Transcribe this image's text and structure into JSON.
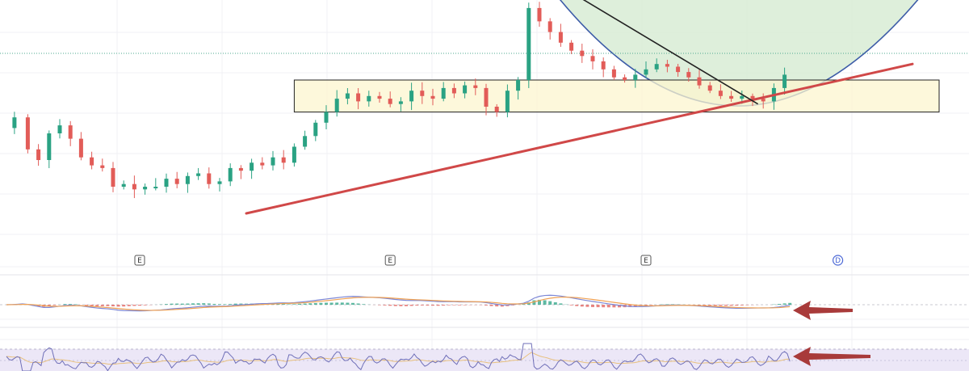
{
  "chart_data": {
    "type": "candlestick",
    "title": "",
    "xlabel": "",
    "ylabel": "",
    "ylim": [
      0,
      100
    ],
    "grid": true,
    "panes": [
      "price",
      "macd",
      "rsi"
    ],
    "ohlc_close_path": [
      [
        0,
        52
      ],
      [
        3,
        56
      ],
      [
        5,
        44
      ],
      [
        7,
        40
      ],
      [
        9,
        50
      ],
      [
        11,
        53
      ],
      [
        13,
        48
      ],
      [
        15,
        41
      ],
      [
        17,
        38
      ],
      [
        19,
        37
      ],
      [
        21,
        30
      ],
      [
        23,
        31
      ],
      [
        25,
        29
      ],
      [
        27,
        30
      ],
      [
        29,
        30
      ],
      [
        31,
        33
      ],
      [
        33,
        31
      ],
      [
        35,
        34
      ],
      [
        37,
        35
      ],
      [
        39,
        31
      ],
      [
        41,
        32
      ],
      [
        43,
        37
      ],
      [
        45,
        36
      ],
      [
        47,
        39
      ],
      [
        49,
        38
      ],
      [
        51,
        41
      ],
      [
        53,
        39
      ],
      [
        55,
        45
      ],
      [
        57,
        49
      ],
      [
        59,
        54
      ],
      [
        61,
        58
      ],
      [
        63,
        63
      ],
      [
        65,
        65
      ],
      [
        67,
        62
      ],
      [
        69,
        64
      ],
      [
        71,
        63
      ],
      [
        73,
        61
      ],
      [
        75,
        62
      ],
      [
        77,
        66
      ],
      [
        79,
        64
      ],
      [
        81,
        63
      ],
      [
        83,
        67
      ],
      [
        85,
        65
      ],
      [
        87,
        68
      ],
      [
        89,
        67
      ],
      [
        91,
        60
      ],
      [
        93,
        58
      ],
      [
        95,
        66
      ],
      [
        97,
        70
      ],
      [
        99,
        97
      ],
      [
        101,
        92
      ],
      [
        103,
        88
      ],
      [
        105,
        84
      ],
      [
        107,
        81
      ],
      [
        109,
        79
      ],
      [
        111,
        77
      ],
      [
        113,
        74
      ],
      [
        115,
        71
      ],
      [
        117,
        70
      ],
      [
        119,
        72
      ],
      [
        121,
        74
      ],
      [
        123,
        76
      ],
      [
        125,
        75
      ],
      [
        127,
        73
      ],
      [
        129,
        71
      ],
      [
        131,
        68
      ],
      [
        133,
        66
      ],
      [
        135,
        64
      ],
      [
        137,
        63
      ],
      [
        139,
        64
      ],
      [
        141,
        63
      ],
      [
        143,
        62
      ],
      [
        145,
        67
      ],
      [
        147,
        72
      ]
    ],
    "event_markers": [
      {
        "label": "E",
        "x": 25
      },
      {
        "label": "E",
        "x": 72
      },
      {
        "label": "E",
        "x": 120
      },
      {
        "label": "D",
        "x": 156
      }
    ],
    "annotations": {
      "support_zone": {
        "x_from": 54,
        "x_to": 175,
        "y_low": 58,
        "y_high": 70
      },
      "trendline_red": {
        "from": [
          45,
          20
        ],
        "to": [
          170,
          76
        ],
        "color": "#d04848"
      },
      "trendline_black": {
        "from": [
          100,
          110
        ],
        "to": [
          141,
          61
        ],
        "color": "#222222"
      },
      "cup_arc": {
        "x_from": 100,
        "x_mid": 137,
        "x_to": 175,
        "y_top": 110,
        "y_bottom": 59,
        "color": "#3d5ca8",
        "fill": "#d8ecd5"
      },
      "horizontal_level": {
        "y": 80,
        "color": "#4caa8f"
      }
    },
    "indicator_arrows": [
      {
        "pane": "macd",
        "color": "#a83a3a"
      },
      {
        "pane": "rsi",
        "color": "#a83a3a"
      }
    ],
    "colors": {
      "up": "#2aa283",
      "down": "#e25c58",
      "macd_line": "#7c87d6",
      "signal_line": "#f0a254",
      "rsi_line": "#6f6fb8",
      "rsi_band": "#ece7f7"
    }
  }
}
